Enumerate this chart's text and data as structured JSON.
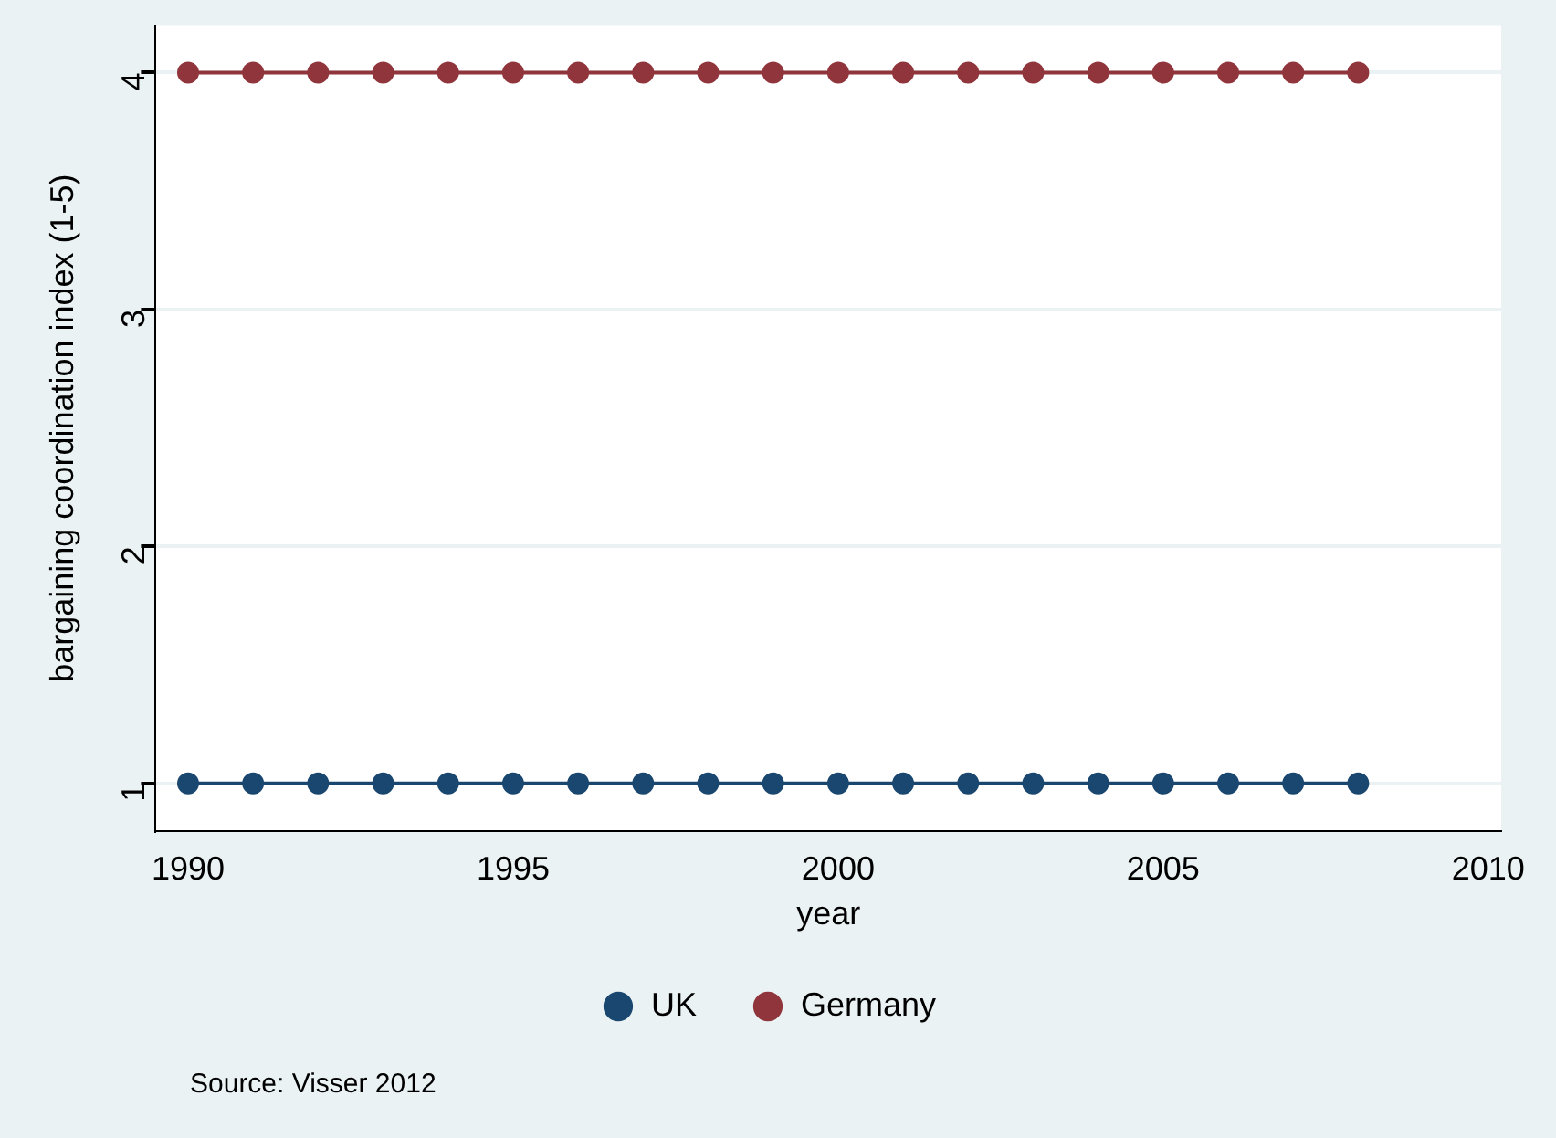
{
  "chart_data": {
    "type": "line",
    "xlabel": "year",
    "ylabel": "bargaining coordination index (1-5)",
    "x": [
      1990,
      1991,
      1992,
      1993,
      1994,
      1995,
      1996,
      1997,
      1998,
      1999,
      2000,
      2001,
      2002,
      2003,
      2004,
      2005,
      2006,
      2007,
      2008
    ],
    "series": [
      {
        "name": "UK",
        "color": "#1a476f",
        "values": [
          1,
          1,
          1,
          1,
          1,
          1,
          1,
          1,
          1,
          1,
          1,
          1,
          1,
          1,
          1,
          1,
          1,
          1,
          1
        ]
      },
      {
        "name": "Germany",
        "color": "#90353b",
        "values": [
          4,
          4,
          4,
          4,
          4,
          4,
          4,
          4,
          4,
          4,
          4,
          4,
          4,
          4,
          4,
          4,
          4,
          4,
          4
        ]
      }
    ],
    "xlim": [
      1989.5,
      2010.2
    ],
    "xticks": [
      1990,
      1995,
      2000,
      2005,
      2010
    ],
    "ylim": [
      0.8,
      4.2
    ],
    "yticks": [
      1,
      2,
      3,
      4
    ],
    "grid": "y",
    "legend": "bottom",
    "marker": "circle",
    "line_style": "solid",
    "annotations": [
      "Source: Visser 2012"
    ]
  }
}
